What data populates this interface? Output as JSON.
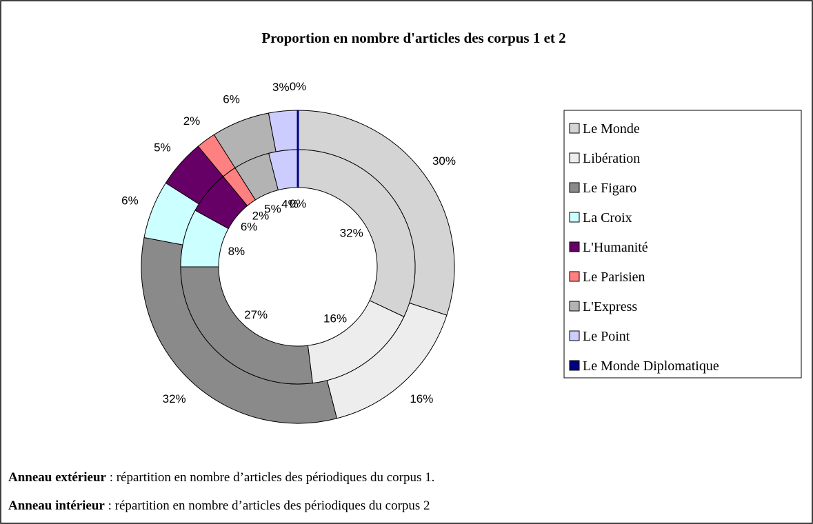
{
  "chart_data": {
    "type": "doughnut",
    "title": "Proportion en nombre d'articles des corpus 1 et 2",
    "categories": [
      "Le Monde",
      "Libération",
      "Le Figaro",
      "La Croix",
      "L'Humanité",
      "Le Parisien",
      "L'Express",
      "Le Point",
      "Le Monde Diplomatique"
    ],
    "colors": [
      "#d4d4d4",
      "#ededed",
      "#8a8a8a",
      "#ccffff",
      "#660066",
      "#ff8080",
      "#b3b3b3",
      "#ccccff",
      "#000080"
    ],
    "series": [
      {
        "values": [
          30,
          16,
          32,
          6,
          5,
          2,
          6,
          3,
          0
        ],
        "value_labels": [
          "30%",
          "16%",
          "32%",
          "6%",
          "5%",
          "2%",
          "6%",
          "3%",
          "0%"
        ]
      },
      {
        "values": [
          32,
          16,
          27,
          8,
          6,
          2,
          5,
          4,
          0
        ],
        "value_labels": [
          "32%",
          "16%",
          "27%",
          "8%",
          "6%",
          "2%",
          "5%",
          "4%",
          "0%"
        ]
      }
    ],
    "legend": "right"
  },
  "notes": [
    {
      "bold": "Anneau extérieur",
      "text": " : répartition en nombre d’articles des périodiques du corpus 1."
    },
    {
      "bold": "Anneau intérieur",
      "text": " : répartition en nombre d’articles des périodiques du corpus 2"
    }
  ]
}
